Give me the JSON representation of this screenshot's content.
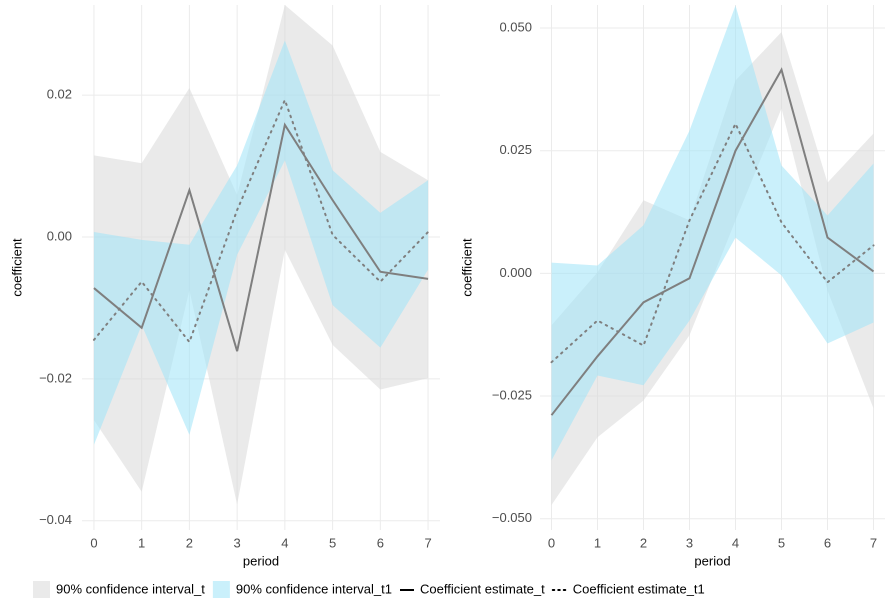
{
  "chart_data": [
    {
      "type": "line",
      "x_label": "period",
      "y_label": "coefficient",
      "x": [
        0,
        1,
        2,
        3,
        4,
        5,
        6,
        7
      ],
      "xlim": [
        -0.25,
        7.25
      ],
      "xticks": [
        0,
        1,
        2,
        3,
        4,
        5,
        6,
        7
      ],
      "ylim": [
        -0.0413,
        0.0327
      ],
      "yticks": [
        {
          "value": -0.04,
          "label": "−0.04"
        },
        {
          "value": -0.02,
          "label": "−0.02"
        },
        {
          "value": 0,
          "label": "0.00"
        },
        {
          "value": 0.02,
          "label": "0.02"
        }
      ],
      "grid": true,
      "bands": [
        {
          "name": "90% confidence interval_t",
          "color": "#d9d9d9",
          "upper": [
            0.0115,
            0.0104,
            0.021,
            0.0059,
            0.0327,
            0.027,
            0.012,
            0.008
          ],
          "lower": [
            -0.0258,
            -0.0359,
            -0.0075,
            -0.0377,
            -0.0018,
            -0.0152,
            -0.0215,
            -0.0199
          ]
        },
        {
          "name": "90% confidence interval_t1",
          "color": "#9fe3f8",
          "upper": [
            0.0007,
            -0.0004,
            -0.0011,
            0.0101,
            0.0277,
            0.0094,
            0.0034,
            0.008
          ],
          "lower": [
            -0.0293,
            -0.0124,
            -0.0279,
            -0.0025,
            0.0108,
            -0.0096,
            -0.0156,
            -0.0046
          ]
        }
      ],
      "series": [
        {
          "name": "Coefficient estimate_t",
          "color": "#7f7f7f",
          "dash": "solid",
          "values": [
            -0.0072,
            -0.0128,
            0.0066,
            -0.0161,
            0.0158,
            0.0052,
            -0.0049,
            -0.0059
          ]
        },
        {
          "name": "Coefficient estimate_t1",
          "color": "#7f7f7f",
          "dash": "dotted",
          "values": [
            -0.0145,
            -0.0063,
            -0.0148,
            0.0038,
            0.0193,
            0.0003,
            -0.0063,
            0.0007
          ]
        }
      ]
    },
    {
      "type": "line",
      "x_label": "period",
      "y_label": "coefficient",
      "x": [
        0,
        1,
        2,
        3,
        4,
        5,
        6,
        7
      ],
      "xlim": [
        -0.25,
        7.25
      ],
      "xticks": [
        0,
        1,
        2,
        3,
        4,
        5,
        6,
        7
      ],
      "ylim": [
        -0.0523,
        0.0547
      ],
      "yticks": [
        {
          "value": -0.05,
          "label": "−0.050"
        },
        {
          "value": -0.025,
          "label": "−0.025"
        },
        {
          "value": 0,
          "label": "0.000"
        },
        {
          "value": 0.025,
          "label": "0.025"
        },
        {
          "value": 0.05,
          "label": "0.050"
        }
      ],
      "grid": true,
      "bands": [
        {
          "color": "#d9d9d9",
          "upper": [
            -0.0106,
            0.0002,
            0.0149,
            0.0108,
            0.0393,
            0.0492,
            0.0185,
            0.0285
          ],
          "lower": [
            -0.0472,
            -0.0334,
            -0.0259,
            -0.0126,
            0.0108,
            0.0336,
            -0.0035,
            -0.0275
          ]
        },
        {
          "color": "#9fe3f8",
          "upper": [
            0.0022,
            0.0016,
            0.0098,
            0.0291,
            0.0546,
            0.022,
            0.0118,
            0.0224
          ],
          "lower": [
            -0.0381,
            -0.0208,
            -0.0228,
            -0.0096,
            0.0073,
            -0.0004,
            -0.0143,
            -0.01
          ]
        }
      ],
      "series": [
        {
          "color": "#7f7f7f",
          "dash": "solid",
          "values": [
            -0.0289,
            -0.0169,
            -0.0059,
            -0.001,
            0.025,
            0.0415,
            0.0073,
            0.0004
          ]
        },
        {
          "color": "#7f7f7f",
          "dash": "dotted",
          "values": [
            -0.0181,
            -0.0096,
            -0.0147,
            0.0108,
            0.0305,
            0.0104,
            -0.0018,
            0.0057
          ]
        }
      ]
    }
  ]
}
